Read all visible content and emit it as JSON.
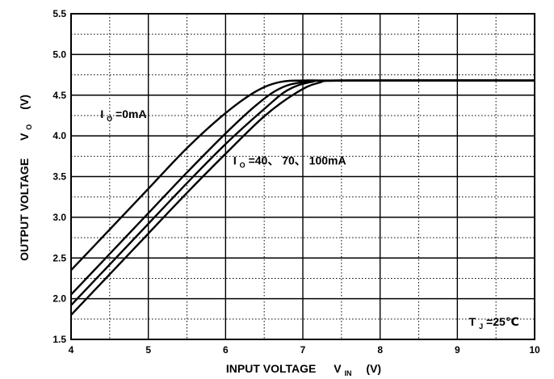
{
  "chart_data": {
    "type": "line",
    "title": "",
    "xlabel": "INPUT VOLTAGE",
    "xlabel_symbol": "V",
    "xlabel_sub": "IN",
    "xlabel_unit": "(V)",
    "ylabel": "OUTPUT VOLTAGE",
    "ylabel_symbol": "V",
    "ylabel_sub": "O",
    "ylabel_unit": "(V)",
    "xlim": [
      4,
      10
    ],
    "ylim": [
      1.5,
      5.5
    ],
    "x_ticks": [
      4,
      5,
      6,
      7,
      8,
      9,
      10
    ],
    "x_tick_labels": [
      "4",
      "5",
      "6",
      "7",
      "8",
      "9",
      "10"
    ],
    "y_ticks": [
      1.5,
      2.0,
      2.5,
      3.0,
      3.5,
      4.0,
      4.5,
      5.0,
      5.5
    ],
    "y_tick_labels": [
      "1.5",
      "2.0",
      "2.5",
      "3.0",
      "3.5",
      "4.0",
      "4.5",
      "5.0",
      "5.5"
    ],
    "minor_grid_step_x": 0.5,
    "minor_grid_step_y": 0.25,
    "grid": true,
    "series": [
      {
        "name": "",
        "x": [
          4.0,
          4.5,
          5.0,
          5.5,
          6.0,
          6.4,
          6.7,
          7.0,
          7.5,
          10.0
        ],
        "y": [
          2.35,
          2.85,
          3.35,
          3.85,
          4.28,
          4.55,
          4.66,
          4.68,
          4.68,
          4.68
        ]
      },
      {
        "name": "",
        "x": [
          4.0,
          4.5,
          5.0,
          5.5,
          6.0,
          6.4,
          6.7,
          7.0,
          7.5,
          10.0
        ],
        "y": [
          2.05,
          2.55,
          3.05,
          3.55,
          4.03,
          4.38,
          4.58,
          4.66,
          4.68,
          4.68
        ]
      },
      {
        "name": "",
        "x": [
          4.0,
          4.5,
          5.0,
          5.5,
          6.0,
          6.5,
          6.8,
          7.1,
          7.5,
          10.0
        ],
        "y": [
          1.92,
          2.42,
          2.92,
          3.42,
          3.9,
          4.33,
          4.56,
          4.66,
          4.68,
          4.68
        ]
      },
      {
        "name": "",
        "x": [
          4.0,
          4.5,
          5.0,
          5.5,
          6.0,
          6.5,
          6.9,
          7.2,
          7.6,
          10.0
        ],
        "y": [
          1.8,
          2.3,
          2.8,
          3.3,
          3.78,
          4.24,
          4.52,
          4.65,
          4.68,
          4.68
        ]
      }
    ],
    "annotations": {
      "io_zero": {
        "prefix": "I",
        "sub": "O",
        "text": "=0mA",
        "x": 4.38,
        "y": 4.22
      },
      "io_loads": {
        "prefix": "I",
        "sub": "O",
        "text": "=40、 70、 100mA",
        "x": 6.1,
        "y": 3.65
      },
      "tj": {
        "prefix": "T",
        "sub": "J",
        "text": "=25℃",
        "x": 9.15,
        "y": 1.67
      }
    }
  }
}
